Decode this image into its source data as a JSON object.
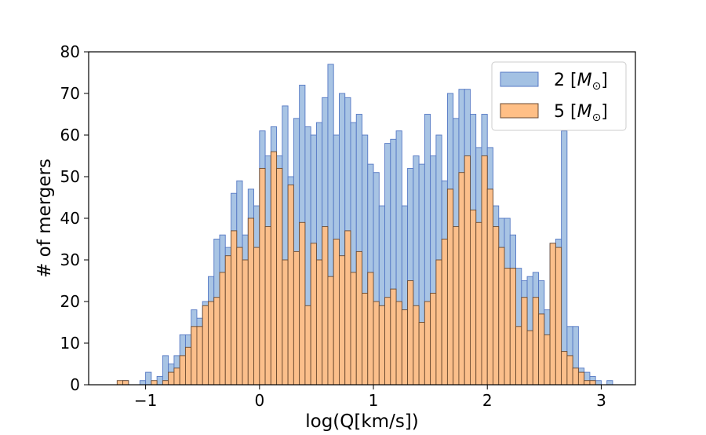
{
  "chart_data": {
    "type": "bar",
    "subtype": "overlapping histogram",
    "title": "",
    "xlabel": "log(Q[km/s])",
    "ylabel": "# of mergers",
    "xlim": [
      -1.5,
      3.3
    ],
    "ylim": [
      0,
      80
    ],
    "xticks": [
      -1,
      0,
      1,
      2,
      3
    ],
    "xtick_labels": [
      "−1",
      "0",
      "1",
      "2",
      "3"
    ],
    "yticks": [
      0,
      10,
      20,
      30,
      40,
      50,
      60,
      70,
      80
    ],
    "ytick_labels": [
      "0",
      "10",
      "20",
      "30",
      "40",
      "50",
      "60",
      "70",
      "80"
    ],
    "grid": false,
    "legend_position": "top-right",
    "bin_width": 0.05,
    "series": [
      {
        "name": "2 [M⊙]",
        "legend_main": "2 [",
        "legend_symbol": "M",
        "legend_sub": "⊙",
        "legend_close": "]",
        "fill": "#a3c1e3",
        "stroke": "#5578c4",
        "bins": [
          [
            -1.2,
            1
          ],
          [
            -1.15,
            0
          ],
          [
            -1.1,
            0
          ],
          [
            -1.05,
            1
          ],
          [
            -1.0,
            3
          ],
          [
            -0.95,
            0
          ],
          [
            -0.9,
            2
          ],
          [
            -0.85,
            7
          ],
          [
            -0.8,
            5
          ],
          [
            -0.75,
            7
          ],
          [
            -0.7,
            12
          ],
          [
            -0.65,
            12
          ],
          [
            -0.6,
            18
          ],
          [
            -0.55,
            16
          ],
          [
            -0.5,
            20
          ],
          [
            -0.45,
            26
          ],
          [
            -0.4,
            35
          ],
          [
            -0.35,
            36
          ],
          [
            -0.3,
            33
          ],
          [
            -0.25,
            46
          ],
          [
            -0.2,
            49
          ],
          [
            -0.15,
            36
          ],
          [
            -0.1,
            47
          ],
          [
            -0.05,
            43
          ],
          [
            0.0,
            61
          ],
          [
            0.05,
            55
          ],
          [
            0.1,
            62
          ],
          [
            0.15,
            55
          ],
          [
            0.2,
            67
          ],
          [
            0.25,
            50
          ],
          [
            0.3,
            64
          ],
          [
            0.35,
            72
          ],
          [
            0.4,
            62
          ],
          [
            0.45,
            60
          ],
          [
            0.5,
            63
          ],
          [
            0.55,
            69
          ],
          [
            0.6,
            77
          ],
          [
            0.65,
            60
          ],
          [
            0.7,
            70
          ],
          [
            0.75,
            69
          ],
          [
            0.8,
            63
          ],
          [
            0.85,
            65
          ],
          [
            0.9,
            60
          ],
          [
            0.95,
            53
          ],
          [
            1.0,
            51
          ],
          [
            1.05,
            43
          ],
          [
            1.1,
            58
          ],
          [
            1.15,
            59
          ],
          [
            1.2,
            61
          ],
          [
            1.25,
            43
          ],
          [
            1.3,
            52
          ],
          [
            1.35,
            55
          ],
          [
            1.4,
            53
          ],
          [
            1.45,
            65
          ],
          [
            1.5,
            55
          ],
          [
            1.55,
            60
          ],
          [
            1.6,
            49
          ],
          [
            1.65,
            70
          ],
          [
            1.7,
            64
          ],
          [
            1.75,
            71
          ],
          [
            1.8,
            71
          ],
          [
            1.85,
            65
          ],
          [
            1.9,
            57
          ],
          [
            1.95,
            65
          ],
          [
            2.0,
            57
          ],
          [
            2.05,
            43
          ],
          [
            2.1,
            40
          ],
          [
            2.15,
            40
          ],
          [
            2.2,
            36
          ],
          [
            2.25,
            28
          ],
          [
            2.3,
            25
          ],
          [
            2.35,
            26
          ],
          [
            2.4,
            27
          ],
          [
            2.45,
            25
          ],
          [
            2.5,
            18
          ],
          [
            2.55,
            34
          ],
          [
            2.6,
            35
          ],
          [
            2.65,
            61
          ],
          [
            2.7,
            14
          ],
          [
            2.75,
            14
          ],
          [
            2.8,
            4
          ],
          [
            2.85,
            3
          ],
          [
            2.9,
            2
          ],
          [
            2.95,
            1
          ],
          [
            3.0,
            0
          ],
          [
            3.05,
            1
          ]
        ]
      },
      {
        "name": "5 [M⊙]",
        "legend_main": "5 [",
        "legend_symbol": "M",
        "legend_sub": "⊙",
        "legend_close": "]",
        "fill": "#ffbf86",
        "stroke": "#6b4a30",
        "bins": [
          [
            -1.25,
            1
          ],
          [
            -1.2,
            1
          ],
          [
            -1.15,
            0
          ],
          [
            -1.1,
            0
          ],
          [
            -1.05,
            0
          ],
          [
            -1.0,
            0
          ],
          [
            -0.95,
            1
          ],
          [
            -0.9,
            0
          ],
          [
            -0.85,
            1
          ],
          [
            -0.8,
            3
          ],
          [
            -0.75,
            4
          ],
          [
            -0.7,
            7
          ],
          [
            -0.65,
            9
          ],
          [
            -0.6,
            14
          ],
          [
            -0.55,
            14
          ],
          [
            -0.5,
            19
          ],
          [
            -0.45,
            20
          ],
          [
            -0.4,
            21
          ],
          [
            -0.35,
            27
          ],
          [
            -0.3,
            31
          ],
          [
            -0.25,
            37
          ],
          [
            -0.2,
            33
          ],
          [
            -0.15,
            30
          ],
          [
            -0.1,
            40
          ],
          [
            -0.05,
            33
          ],
          [
            0.0,
            52
          ],
          [
            0.05,
            38
          ],
          [
            0.1,
            56
          ],
          [
            0.15,
            52
          ],
          [
            0.2,
            30
          ],
          [
            0.25,
            48
          ],
          [
            0.3,
            32
          ],
          [
            0.35,
            39
          ],
          [
            0.4,
            19
          ],
          [
            0.45,
            34
          ],
          [
            0.5,
            30
          ],
          [
            0.55,
            38
          ],
          [
            0.6,
            26
          ],
          [
            0.65,
            35
          ],
          [
            0.7,
            31
          ],
          [
            0.75,
            37
          ],
          [
            0.8,
            27
          ],
          [
            0.85,
            32
          ],
          [
            0.9,
            22
          ],
          [
            0.95,
            27
          ],
          [
            1.0,
            20
          ],
          [
            1.05,
            19
          ],
          [
            1.1,
            21
          ],
          [
            1.15,
            23
          ],
          [
            1.2,
            20
          ],
          [
            1.25,
            18
          ],
          [
            1.3,
            25
          ],
          [
            1.35,
            19
          ],
          [
            1.4,
            15
          ],
          [
            1.45,
            20
          ],
          [
            1.5,
            22
          ],
          [
            1.55,
            30
          ],
          [
            1.6,
            35
          ],
          [
            1.65,
            47
          ],
          [
            1.7,
            38
          ],
          [
            1.75,
            51
          ],
          [
            1.8,
            55
          ],
          [
            1.85,
            42
          ],
          [
            1.9,
            39
          ],
          [
            1.95,
            55
          ],
          [
            2.0,
            47
          ],
          [
            2.05,
            38
          ],
          [
            2.1,
            33
          ],
          [
            2.15,
            28
          ],
          [
            2.2,
            28
          ],
          [
            2.25,
            14
          ],
          [
            2.3,
            21
          ],
          [
            2.35,
            13
          ],
          [
            2.4,
            21
          ],
          [
            2.45,
            17
          ],
          [
            2.5,
            12
          ],
          [
            2.55,
            34
          ],
          [
            2.6,
            33
          ],
          [
            2.65,
            8
          ],
          [
            2.7,
            7
          ],
          [
            2.75,
            4
          ],
          [
            2.8,
            3
          ],
          [
            2.85,
            1
          ],
          [
            2.9,
            1
          ],
          [
            2.95,
            0
          ]
        ]
      }
    ]
  }
}
